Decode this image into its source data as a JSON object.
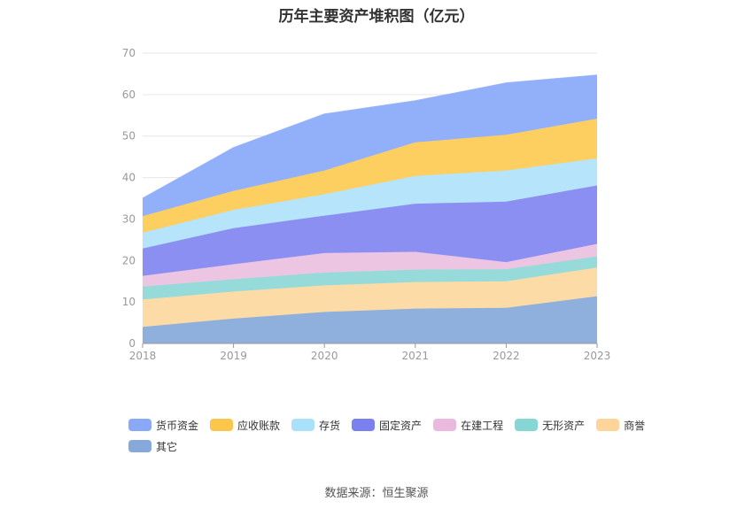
{
  "chart_data": {
    "type": "area",
    "stacked": true,
    "title": "历年主要资产堆积图（亿元）",
    "categories": [
      "2018",
      "2019",
      "2020",
      "2021",
      "2022",
      "2023"
    ],
    "ylim": [
      0,
      70
    ],
    "yticks": [
      0,
      10,
      20,
      30,
      40,
      50,
      60,
      70
    ],
    "grid": true,
    "legend_position": "bottom",
    "series": [
      {
        "name": "其它",
        "color": "#8fb0dd",
        "values": [
          4.0,
          6.0,
          7.6,
          8.4,
          8.6,
          11.4
        ]
      },
      {
        "name": "商誉",
        "color": "#fddba6",
        "values": [
          6.6,
          6.5,
          6.4,
          6.4,
          6.4,
          6.9
        ]
      },
      {
        "name": "无形资产",
        "color": "#96dbd9",
        "values": [
          3.1,
          3.0,
          3.1,
          3.0,
          2.9,
          2.7
        ]
      },
      {
        "name": "在建工程",
        "color": "#ecc5e2",
        "values": [
          2.6,
          3.6,
          4.7,
          4.3,
          1.7,
          3.0
        ]
      },
      {
        "name": "固定资产",
        "color": "#8c8ff2",
        "values": [
          6.6,
          8.7,
          9.0,
          11.6,
          14.6,
          14.1
        ]
      },
      {
        "name": "存货",
        "color": "#b5e4fb",
        "values": [
          3.8,
          4.4,
          5.2,
          6.7,
          7.5,
          6.5
        ]
      },
      {
        "name": "应收账款",
        "color": "#fdcf60",
        "values": [
          4.0,
          4.6,
          5.7,
          8.1,
          8.6,
          9.6
        ]
      },
      {
        "name": "货币资金",
        "color": "#92affa",
        "values": [
          4.3,
          10.4,
          13.6,
          10.0,
          12.5,
          10.5
        ]
      }
    ]
  },
  "legend_order": [
    {
      "name": "货币资金",
      "color": "#8aa8f8"
    },
    {
      "name": "应收账款",
      "color": "#fcc64a"
    },
    {
      "name": "存货",
      "color": "#aae0fa"
    },
    {
      "name": "固定资产",
      "color": "#7b80f0"
    },
    {
      "name": "在建工程",
      "color": "#e9badd"
    },
    {
      "name": "无形资产",
      "color": "#86d6d3"
    },
    {
      "name": "商誉",
      "color": "#fdd59a"
    },
    {
      "name": "其它",
      "color": "#86a8da"
    }
  ],
  "source": "数据来源：恒生聚源"
}
